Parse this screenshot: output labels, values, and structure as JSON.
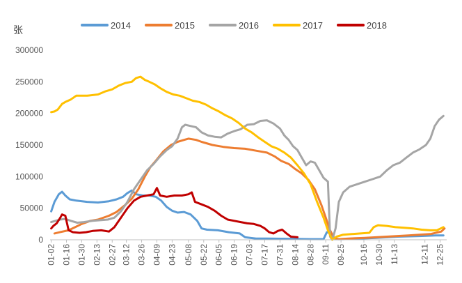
{
  "chart_data": {
    "type": "line",
    "title": "",
    "ylabel": "张",
    "xlabel": "",
    "ylim": [
      0,
      300000
    ],
    "yticks": [
      0,
      50000,
      100000,
      150000,
      200000,
      250000,
      300000
    ],
    "grid": false,
    "legend": "top",
    "x_day_range": [
      1,
      365
    ],
    "x_ticks": [
      {
        "label": "01-02",
        "day": 2
      },
      {
        "label": "01-16",
        "day": 16
      },
      {
        "label": "01-30",
        "day": 30
      },
      {
        "label": "02-13",
        "day": 44
      },
      {
        "label": "02-27",
        "day": 58
      },
      {
        "label": "03-12",
        "day": 71
      },
      {
        "label": "03-26",
        "day": 85
      },
      {
        "label": "04-09",
        "day": 99
      },
      {
        "label": "04-23",
        "day": 113
      },
      {
        "label": "05-08",
        "day": 128
      },
      {
        "label": "05-22",
        "day": 142
      },
      {
        "label": "06-05",
        "day": 156
      },
      {
        "label": "06-19",
        "day": 170
      },
      {
        "label": "07-03",
        "day": 184
      },
      {
        "label": "07-17",
        "day": 198
      },
      {
        "label": "07-31",
        "day": 212
      },
      {
        "label": "08-14",
        "day": 226
      },
      {
        "label": "08-28",
        "day": 240
      },
      {
        "label": "09-11",
        "day": 254
      },
      {
        "label": "09-25",
        "day": 268
      },
      {
        "label": "10-16",
        "day": 289
      },
      {
        "label": "10-30",
        "day": 303
      },
      {
        "label": "11-13",
        "day": 317
      },
      {
        "label": "12-11",
        "day": 345
      },
      {
        "label": "12-25",
        "day": 359
      }
    ],
    "series": [
      {
        "name": "2014",
        "color": "#5B9BD5",
        "points": [
          [
            2,
            45000
          ],
          [
            5,
            60000
          ],
          [
            9,
            72000
          ],
          [
            12,
            76000
          ],
          [
            15,
            70000
          ],
          [
            19,
            64000
          ],
          [
            25,
            62000
          ],
          [
            35,
            60000
          ],
          [
            45,
            59000
          ],
          [
            55,
            61000
          ],
          [
            62,
            64000
          ],
          [
            68,
            68000
          ],
          [
            72,
            74000
          ],
          [
            76,
            78000
          ],
          [
            80,
            72000
          ],
          [
            86,
            70000
          ],
          [
            92,
            70000
          ],
          [
            98,
            68000
          ],
          [
            103,
            62000
          ],
          [
            108,
            52000
          ],
          [
            113,
            46000
          ],
          [
            118,
            43000
          ],
          [
            124,
            44000
          ],
          [
            130,
            40000
          ],
          [
            136,
            30000
          ],
          [
            140,
            18000
          ],
          [
            145,
            16000
          ],
          [
            155,
            15000
          ],
          [
            165,
            12000
          ],
          [
            175,
            10000
          ],
          [
            180,
            4000
          ],
          [
            190,
            2000
          ],
          [
            200,
            2000
          ],
          [
            220,
            1500
          ],
          [
            240,
            1000
          ],
          [
            252,
            1000
          ],
          [
            255,
            12000
          ],
          [
            259,
            10000
          ],
          [
            262,
            1000
          ],
          [
            270,
            1000
          ],
          [
            285,
            2000
          ],
          [
            300,
            3000
          ],
          [
            320,
            5000
          ],
          [
            340,
            6000
          ],
          [
            355,
            7000
          ],
          [
            362,
            7000
          ]
        ]
      },
      {
        "name": "2015",
        "color": "#ED7D31",
        "points": [
          [
            5,
            10000
          ],
          [
            10,
            12000
          ],
          [
            18,
            15000
          ],
          [
            24,
            20000
          ],
          [
            30,
            25000
          ],
          [
            38,
            30000
          ],
          [
            45,
            32000
          ],
          [
            55,
            38000
          ],
          [
            62,
            44000
          ],
          [
            70,
            55000
          ],
          [
            76,
            65000
          ],
          [
            82,
            80000
          ],
          [
            88,
            100000
          ],
          [
            93,
            115000
          ],
          [
            98,
            125000
          ],
          [
            105,
            140000
          ],
          [
            112,
            150000
          ],
          [
            118,
            155000
          ],
          [
            124,
            158000
          ],
          [
            128,
            160000
          ],
          [
            135,
            158000
          ],
          [
            140,
            155000
          ],
          [
            150,
            150000
          ],
          [
            160,
            147000
          ],
          [
            170,
            145000
          ],
          [
            180,
            144000
          ],
          [
            190,
            141000
          ],
          [
            200,
            138000
          ],
          [
            207,
            132000
          ],
          [
            213,
            125000
          ],
          [
            220,
            120000
          ],
          [
            226,
            112000
          ],
          [
            232,
            105000
          ],
          [
            238,
            95000
          ],
          [
            244,
            80000
          ],
          [
            250,
            55000
          ],
          [
            254,
            35000
          ],
          [
            258,
            15000
          ],
          [
            262,
            2000
          ],
          [
            266,
            1000
          ],
          [
            275,
            2000
          ],
          [
            290,
            3000
          ],
          [
            310,
            5000
          ],
          [
            330,
            7000
          ],
          [
            350,
            9000
          ],
          [
            360,
            13000
          ],
          [
            363,
            18000
          ]
        ]
      },
      {
        "name": "2016",
        "color": "#A5A5A5",
        "points": [
          [
            2,
            28000
          ],
          [
            6,
            30000
          ],
          [
            10,
            32000
          ],
          [
            15,
            33000
          ],
          [
            20,
            30000
          ],
          [
            26,
            27000
          ],
          [
            32,
            28000
          ],
          [
            40,
            30000
          ],
          [
            47,
            31000
          ],
          [
            54,
            32000
          ],
          [
            60,
            35000
          ],
          [
            66,
            45000
          ],
          [
            72,
            60000
          ],
          [
            78,
            80000
          ],
          [
            84,
            95000
          ],
          [
            90,
            110000
          ],
          [
            96,
            120000
          ],
          [
            102,
            132000
          ],
          [
            108,
            142000
          ],
          [
            113,
            148000
          ],
          [
            118,
            160000
          ],
          [
            122,
            178000
          ],
          [
            125,
            182000
          ],
          [
            130,
            180000
          ],
          [
            135,
            178000
          ],
          [
            140,
            170000
          ],
          [
            146,
            165000
          ],
          [
            152,
            163000
          ],
          [
            158,
            162000
          ],
          [
            164,
            168000
          ],
          [
            170,
            172000
          ],
          [
            176,
            175000
          ],
          [
            182,
            182000
          ],
          [
            188,
            183000
          ],
          [
            194,
            188000
          ],
          [
            200,
            189000
          ],
          [
            206,
            184000
          ],
          [
            212,
            176000
          ],
          [
            216,
            165000
          ],
          [
            220,
            158000
          ],
          [
            224,
            148000
          ],
          [
            228,
            142000
          ],
          [
            232,
            130000
          ],
          [
            236,
            118000
          ],
          [
            240,
            124000
          ],
          [
            244,
            122000
          ],
          [
            248,
            110000
          ],
          [
            252,
            98000
          ],
          [
            256,
            92000
          ],
          [
            258,
            5000
          ],
          [
            260,
            0
          ],
          [
            263,
            18000
          ],
          [
            266,
            60000
          ],
          [
            270,
            75000
          ],
          [
            276,
            84000
          ],
          [
            283,
            88000
          ],
          [
            290,
            92000
          ],
          [
            297,
            96000
          ],
          [
            304,
            100000
          ],
          [
            310,
            110000
          ],
          [
            316,
            118000
          ],
          [
            322,
            122000
          ],
          [
            328,
            130000
          ],
          [
            334,
            138000
          ],
          [
            340,
            143000
          ],
          [
            346,
            150000
          ],
          [
            350,
            160000
          ],
          [
            354,
            180000
          ],
          [
            358,
            190000
          ],
          [
            362,
            196000
          ]
        ]
      },
      {
        "name": "2017",
        "color": "#FFC000",
        "points": [
          [
            2,
            202000
          ],
          [
            5,
            203000
          ],
          [
            8,
            206000
          ],
          [
            12,
            215000
          ],
          [
            15,
            218000
          ],
          [
            20,
            222000
          ],
          [
            25,
            228000
          ],
          [
            35,
            228000
          ],
          [
            45,
            230000
          ],
          [
            52,
            235000
          ],
          [
            58,
            238000
          ],
          [
            64,
            244000
          ],
          [
            70,
            248000
          ],
          [
            76,
            250000
          ],
          [
            80,
            256000
          ],
          [
            84,
            258000
          ],
          [
            88,
            253000
          ],
          [
            92,
            250000
          ],
          [
            97,
            246000
          ],
          [
            102,
            240000
          ],
          [
            108,
            234000
          ],
          [
            114,
            230000
          ],
          [
            120,
            228000
          ],
          [
            126,
            224000
          ],
          [
            132,
            220000
          ],
          [
            138,
            218000
          ],
          [
            144,
            214000
          ],
          [
            150,
            208000
          ],
          [
            156,
            203000
          ],
          [
            162,
            197000
          ],
          [
            168,
            192000
          ],
          [
            174,
            185000
          ],
          [
            180,
            176000
          ],
          [
            186,
            170000
          ],
          [
            192,
            162000
          ],
          [
            198,
            155000
          ],
          [
            204,
            148000
          ],
          [
            210,
            144000
          ],
          [
            216,
            138000
          ],
          [
            222,
            130000
          ],
          [
            228,
            118000
          ],
          [
            234,
            105000
          ],
          [
            240,
            88000
          ],
          [
            246,
            60000
          ],
          [
            252,
            35000
          ],
          [
            256,
            15000
          ],
          [
            260,
            0
          ],
          [
            264,
            5000
          ],
          [
            270,
            8000
          ],
          [
            278,
            9000
          ],
          [
            286,
            10000
          ],
          [
            294,
            11000
          ],
          [
            298,
            20000
          ],
          [
            302,
            23000
          ],
          [
            310,
            22000
          ],
          [
            318,
            20000
          ],
          [
            326,
            19000
          ],
          [
            334,
            18000
          ],
          [
            342,
            16000
          ],
          [
            350,
            15000
          ],
          [
            356,
            15000
          ],
          [
            362,
            20000
          ]
        ]
      },
      {
        "name": "2018",
        "color": "#C00000",
        "points": [
          [
            2,
            18000
          ],
          [
            4,
            22000
          ],
          [
            7,
            26000
          ],
          [
            10,
            34000
          ],
          [
            12,
            40000
          ],
          [
            15,
            38000
          ],
          [
            18,
            15000
          ],
          [
            22,
            12000
          ],
          [
            28,
            11000
          ],
          [
            34,
            12000
          ],
          [
            40,
            14000
          ],
          [
            48,
            15000
          ],
          [
            55,
            13000
          ],
          [
            60,
            20000
          ],
          [
            66,
            35000
          ],
          [
            72,
            50000
          ],
          [
            78,
            62000
          ],
          [
            84,
            68000
          ],
          [
            90,
            70000
          ],
          [
            96,
            72000
          ],
          [
            99,
            82000
          ],
          [
            102,
            70000
          ],
          [
            108,
            68000
          ],
          [
            115,
            70000
          ],
          [
            122,
            70000
          ],
          [
            128,
            72000
          ],
          [
            131,
            75000
          ],
          [
            134,
            60000
          ],
          [
            140,
            56000
          ],
          [
            146,
            52000
          ],
          [
            152,
            46000
          ],
          [
            158,
            38000
          ],
          [
            164,
            32000
          ],
          [
            170,
            30000
          ],
          [
            176,
            28000
          ],
          [
            182,
            26000
          ],
          [
            188,
            25000
          ],
          [
            194,
            22000
          ],
          [
            198,
            18000
          ],
          [
            202,
            12000
          ],
          [
            206,
            10000
          ],
          [
            210,
            14000
          ],
          [
            214,
            16000
          ],
          [
            218,
            10000
          ],
          [
            222,
            5000
          ],
          [
            228,
            4000
          ]
        ]
      }
    ]
  }
}
